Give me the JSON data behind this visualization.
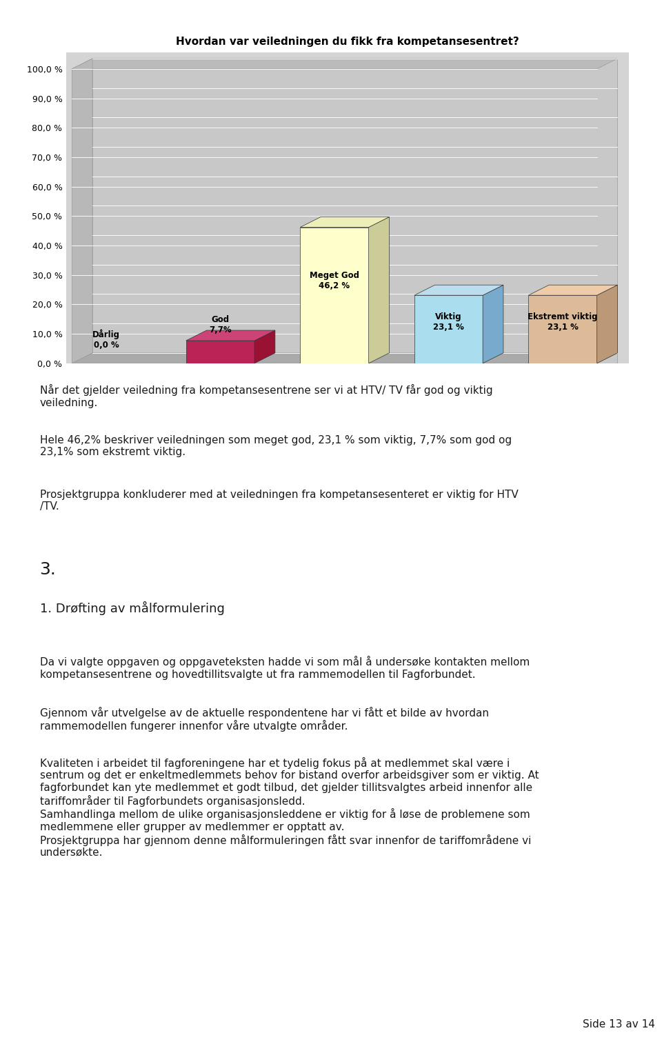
{
  "title": "Hvordan var veiledningen du fikk fra kompetansesentret?",
  "categories": [
    "Dårlig",
    "God",
    "Meget God",
    "Viktig",
    "Ekstremt viktig"
  ],
  "values": [
    0.0,
    7.7,
    46.2,
    23.1,
    23.1
  ],
  "bar_labels": [
    "Dårlig\n0,0 %",
    "God\n7,7%",
    "Meget God\n46,2 %",
    "Viktig\n23,1 %",
    "Ekstremt viktig\n23,1 %"
  ],
  "bar_colors_face": [
    "#7777cc",
    "#bb2255",
    "#ffffcc",
    "#aaddee",
    "#ddbb99"
  ],
  "bar_colors_side": [
    "#5555aa",
    "#991133",
    "#cccc99",
    "#77aacc",
    "#bb9977"
  ],
  "bar_colors_top": [
    "#9999dd",
    "#cc4477",
    "#eeeebb",
    "#bbddee",
    "#eeccaa"
  ],
  "ylim_max": 100,
  "yticks": [
    0,
    10,
    20,
    30,
    40,
    50,
    60,
    70,
    80,
    90,
    100
  ],
  "ytick_labels": [
    "0,0 %",
    "10,0 %",
    "20,0 %",
    "30,0 %",
    "40,0 %",
    "50,0 %",
    "60,0 %",
    "70,0 %",
    "80,0 %",
    "90,0 %",
    "100,0 %"
  ],
  "plot_area_bg": "#d4d4d4",
  "chart_outer_bg": "#c0c0c0",
  "page_bg": "#ffffff",
  "text_color": "#1a1a1a",
  "para1": "Når det gjelder veiledning fra kompetansesentrene ser vi at HTV/ TV får god og viktig\nveiledning.",
  "para2": "Hele 46,2% beskriver veiledningen som meget god, 23,1 % som viktig, 7,7% som god og\n23,1% som ekstremt viktig.",
  "para3": "Prosjektgruppa konkluderer med at veiledningen fra kompetansesenteret er viktig for HTV\n/TV.",
  "heading_num": "3.",
  "heading_text": "1. Drøfting av målformulering",
  "para4": "Da vi valgte oppgaven og oppgaveteksten hadde vi som mål å undersøke kontakten mellom\nkompetansesentrene og hovedtillitsvalgte ut fra rammemodellen til Fagforbundet.",
  "para5": "Gjennom vår utvelgelse av de aktuelle respondentene har vi fått et bilde av hvordan\nrammemodellen fungerer innenfor våre utvalgte områder.",
  "para6": "Kvaliteten i arbeidet til fagforeningene har et tydelig fokus på at medlemmet skal være i\nsentrum og det er enkeltmedlemmets behov for bistand overfor arbeidsgiver som er viktig. At\nfagforbundet kan yte medlemmet et godt tilbud, det gjelder tillitsvalgtes arbeid innenfor alle\ntariffområder til Fagforbundets organisasjonsledd.\nSamhandlinga mellom de ulike organisasjonsleddene er viktig for å løse de problemene som\nmedlemmene eller grupper av medlemmer er opptatt av.\nProsjektgruppa har gjennom denne målformuleringen fått svar innenfor de tariffområdene vi\nundersøkte.",
  "footer": "Side 13 av 14",
  "figsize": [
    9.6,
    15.27
  ],
  "dpi": 100
}
